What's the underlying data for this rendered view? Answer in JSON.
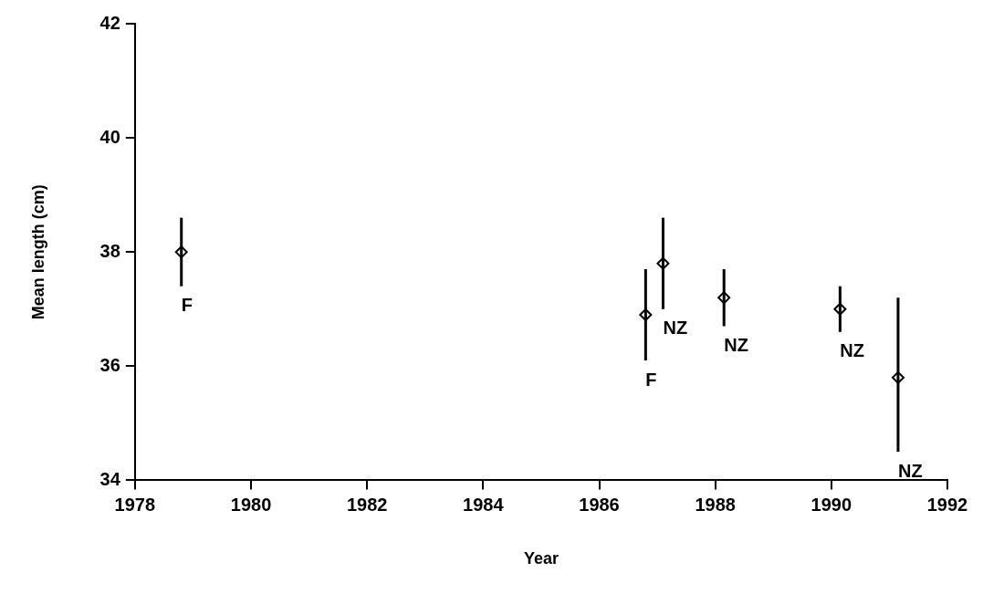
{
  "chart_data": {
    "type": "scatter",
    "xlabel": "Year",
    "ylabel": "Mean length (cm)",
    "x": [
      1978.8,
      1986.8,
      1987.1,
      1988.15,
      1990.15,
      1991.15
    ],
    "values": [
      38.0,
      36.9,
      37.8,
      37.2,
      37.0,
      35.8
    ],
    "errors": [
      [
        37.4,
        38.6
      ],
      [
        36.1,
        37.7
      ],
      [
        37.0,
        38.6
      ],
      [
        36.7,
        37.7
      ],
      [
        36.6,
        37.4
      ],
      [
        34.5,
        37.2
      ]
    ],
    "color": "#000000",
    "marker": "diamond",
    "grid": false,
    "legend": false,
    "xlim": [
      1978,
      1992
    ],
    "xticks": [
      1978,
      1980,
      1982,
      1984,
      1986,
      1988,
      1990,
      1992
    ],
    "ylim": [
      34,
      42
    ],
    "yticks": [
      34,
      36,
      38,
      40,
      42
    ],
    "annotations": [
      {
        "text": "F",
        "x": 1978.8,
        "y": 37.4
      },
      {
        "text": "F",
        "x": 1986.8,
        "y": 36.1
      },
      {
        "text": "NZ",
        "x": 1987.1,
        "y": 37.0
      },
      {
        "text": "NZ",
        "x": 1988.15,
        "y": 36.7
      },
      {
        "text": "NZ",
        "x": 1990.15,
        "y": 36.6
      },
      {
        "text": "NZ",
        "x": 1991.15,
        "y": 34.5
      }
    ]
  }
}
